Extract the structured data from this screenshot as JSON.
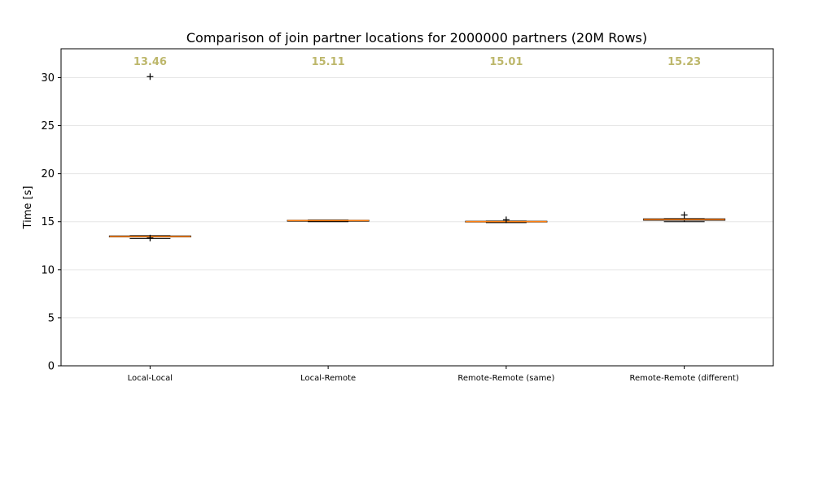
{
  "chart_data": {
    "type": "box",
    "title": "Comparison of join partner locations for 2000000 partners (20M Rows)",
    "xlabel": "",
    "ylabel": "Time [s]",
    "ylim": [
      0,
      33
    ],
    "yticks": [
      0,
      5,
      10,
      15,
      20,
      25,
      30
    ],
    "grid": "horizontal",
    "categories": [
      "Local-Local",
      "Local-Remote",
      "Remote-Remote (same)",
      "Remote-Remote (different)"
    ],
    "median_labels": [
      "13.46",
      "15.11",
      "15.01",
      "15.23"
    ],
    "boxes": [
      {
        "q1": 13.42,
        "median": 13.46,
        "q3": 13.52,
        "whisker_low": 13.25,
        "whisker_high": 13.55,
        "outliers": [
          13.3,
          30.1
        ]
      },
      {
        "q1": 15.05,
        "median": 15.11,
        "q3": 15.15,
        "whisker_low": 15.0,
        "whisker_high": 15.18,
        "outliers": []
      },
      {
        "q1": 14.98,
        "median": 15.01,
        "q3": 15.05,
        "whisker_low": 14.9,
        "whisker_high": 15.07,
        "outliers": [
          15.2
        ]
      },
      {
        "q1": 15.15,
        "median": 15.23,
        "q3": 15.3,
        "whisker_low": 15.0,
        "whisker_high": 15.33,
        "outliers": [
          15.7
        ]
      }
    ],
    "colors": {
      "median_line": "#ff7f0e",
      "median_label": "#bdb76b",
      "box_edge": "#000000",
      "grid": "#e6e6e6"
    }
  }
}
